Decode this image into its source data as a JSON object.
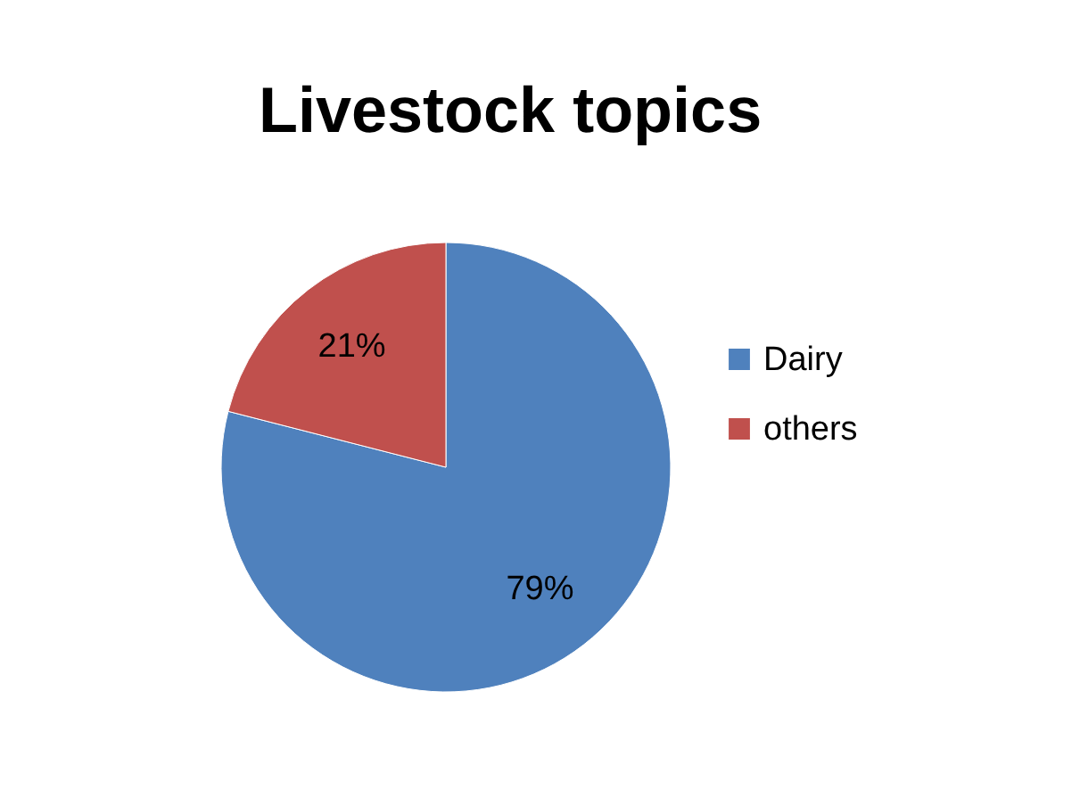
{
  "chart_data": {
    "type": "pie",
    "title": "Livestock topics",
    "categories": [
      "Dairy",
      "others"
    ],
    "values": [
      79,
      21
    ],
    "colors": [
      "#4f81bd",
      "#c0504d"
    ],
    "value_labels": [
      "79%",
      "21%"
    ],
    "legend": "right"
  }
}
